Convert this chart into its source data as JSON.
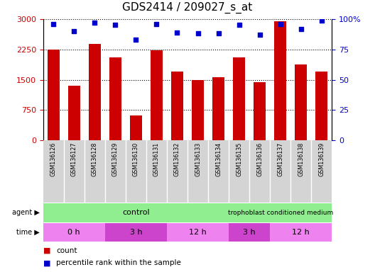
{
  "title": "GDS2414 / 209027_s_at",
  "samples": [
    "GSM136126",
    "GSM136127",
    "GSM136128",
    "GSM136129",
    "GSM136130",
    "GSM136131",
    "GSM136132",
    "GSM136133",
    "GSM136134",
    "GSM136135",
    "GSM136136",
    "GSM136137",
    "GSM136138",
    "GSM136139"
  ],
  "counts": [
    2250,
    1350,
    2380,
    2050,
    620,
    2230,
    1700,
    1500,
    1560,
    2050,
    1440,
    2950,
    1870,
    1700
  ],
  "percentile_ranks": [
    96,
    90,
    97,
    95,
    83,
    96,
    89,
    88,
    88,
    95,
    87,
    96,
    92,
    99
  ],
  "bar_color": "#cc0000",
  "dot_color": "#0000cc",
  "ylim_left": [
    0,
    3000
  ],
  "ylim_right": [
    0,
    100
  ],
  "yticks_left": [
    0,
    750,
    1500,
    2250,
    3000
  ],
  "yticks_right": [
    0,
    25,
    50,
    75,
    100
  ],
  "time_segments": [
    {
      "label": "0 h",
      "start": 0,
      "end": 3,
      "color": "#EE82EE"
    },
    {
      "label": "3 h",
      "start": 3,
      "end": 6,
      "color": "#CC44CC"
    },
    {
      "label": "12 h",
      "start": 6,
      "end": 9,
      "color": "#EE82EE"
    },
    {
      "label": "3 h",
      "start": 9,
      "end": 11,
      "color": "#CC44CC"
    },
    {
      "label": "12 h",
      "start": 11,
      "end": 14,
      "color": "#EE82EE"
    }
  ],
  "legend_count_color": "#cc0000",
  "legend_dot_color": "#0000cc",
  "tick_label_color_left": "#cc0000",
  "tick_label_color_right": "#0000cc"
}
